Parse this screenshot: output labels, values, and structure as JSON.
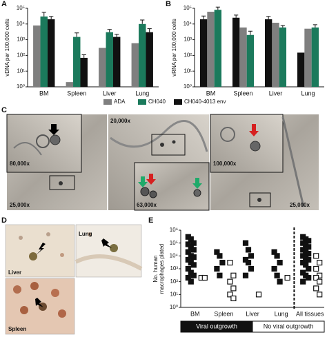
{
  "chart_data": [
    {
      "panel": "A",
      "type": "bar",
      "log_scale": true,
      "y_label": "vDNA per 100,000 cells",
      "categories": [
        "BM",
        "Spleen",
        "Liver",
        "Lung"
      ],
      "series": [
        {
          "name": "ADA",
          "color": "#7f7f7f",
          "values": [
            8000,
            2,
            300,
            600
          ]
        },
        {
          "name": "CH040",
          "color": "#1b7a5c",
          "values": [
            30000,
            1500,
            3000,
            10000
          ],
          "errors": [
            25000,
            1200,
            1500,
            8000
          ]
        },
        {
          "name": "CH040-4013 env",
          "color": "#111111",
          "values": [
            20000,
            70,
            1500,
            3000
          ],
          "errors": [
            10000,
            40,
            700,
            2000
          ]
        }
      ],
      "ylim": [
        1,
        100000
      ],
      "yticks": [
        {
          "value": 1,
          "label": "10⁰"
        },
        {
          "value": 10,
          "label": "10¹"
        },
        {
          "value": 100,
          "label": "10²"
        },
        {
          "value": 1000,
          "label": "10³"
        },
        {
          "value": 10000,
          "label": "10⁴"
        },
        {
          "value": 100000,
          "label": "10⁵"
        }
      ]
    },
    {
      "panel": "B",
      "type": "bar",
      "log_scale": true,
      "y_label": "vRNA per 100,000 cells",
      "categories": [
        "BM",
        "Spleen",
        "Liver",
        "Lung"
      ],
      "series": [
        {
          "color": "#111111",
          "values": [
            20000,
            25000,
            20000,
            150
          ],
          "errors": [
            12000,
            12000,
            10000,
            null
          ]
        },
        {
          "color": "#7f7f7f",
          "values": [
            60000,
            6000,
            12000,
            5000
          ]
        },
        {
          "color": "#1b7a5c",
          "values": [
            80000,
            2000,
            6000,
            6000
          ],
          "errors": [
            40000,
            1500,
            2000,
            3000
          ]
        }
      ],
      "ylim": [
        1,
        100000
      ],
      "yticks": [
        {
          "value": 1,
          "label": "10⁰"
        },
        {
          "value": 10,
          "label": "10¹"
        },
        {
          "value": 100,
          "label": "10²"
        },
        {
          "value": 1000,
          "label": "10³"
        },
        {
          "value": 10000,
          "label": "10⁴"
        },
        {
          "value": 100000,
          "label": "10⁵"
        }
      ]
    },
    {
      "panel": "E",
      "type": "strip",
      "log_scale": true,
      "y_label_lines": [
        "No. human",
        "macrophages plated"
      ],
      "categories": [
        "BM",
        "Spleen",
        "Liver",
        "Lung",
        "All tissues"
      ],
      "series": [
        {
          "name": "Viral outgrowth",
          "color": "#111111",
          "filled": true,
          "values": [
            [
              300000,
              200000,
              100000,
              80000,
              50000,
              30000,
              20000,
              10000,
              8000,
              5000,
              3000,
              2000,
              1000,
              500,
              300,
              200,
              100
            ],
            [
              20000,
              10000,
              3000,
              1000,
              300
            ],
            [
              100000,
              30000,
              10000,
              5000,
              3000,
              1000,
              300
            ],
            [
              20000,
              10000,
              3000,
              1000,
              300,
              100
            ],
            [
              300000,
              200000,
              150000,
              100000,
              80000,
              50000,
              30000,
              20000,
              15000,
              10000,
              8000,
              5000,
              3000,
              2000,
              1000,
              500,
              300,
              200,
              100
            ]
          ]
        },
        {
          "name": "No viral outgrowth",
          "color": "#111111",
          "filled": false,
          "values": [
            [
              200,
              200
            ],
            [
              3000,
              300,
              100,
              30,
              10,
              5
            ],
            [
              10
            ],
            [
              200
            ],
            [
              10000,
              3000,
              1000,
              300,
              200,
              100,
              30,
              10
            ]
          ]
        }
      ],
      "ylim": [
        1,
        1000000
      ],
      "yticks": [
        {
          "value": 1,
          "label": "10⁰"
        },
        {
          "value": 10,
          "label": "10¹"
        },
        {
          "value": 100,
          "label": "10²"
        },
        {
          "value": 1000,
          "label": "10³"
        },
        {
          "value": 10000,
          "label": "10⁴"
        },
        {
          "value": 100000,
          "label": "10⁵"
        },
        {
          "value": 1000000,
          "label": "10⁶"
        }
      ]
    }
  ],
  "micrographs": {
    "panel": "C",
    "magnifications": [
      "80,000x",
      "25,000x",
      "20,000x",
      "63,000x",
      "100,000x",
      "25,000x"
    ]
  },
  "ihc": {
    "panel": "D",
    "labels": [
      "Liver",
      "Lung",
      "Spleen"
    ]
  }
}
